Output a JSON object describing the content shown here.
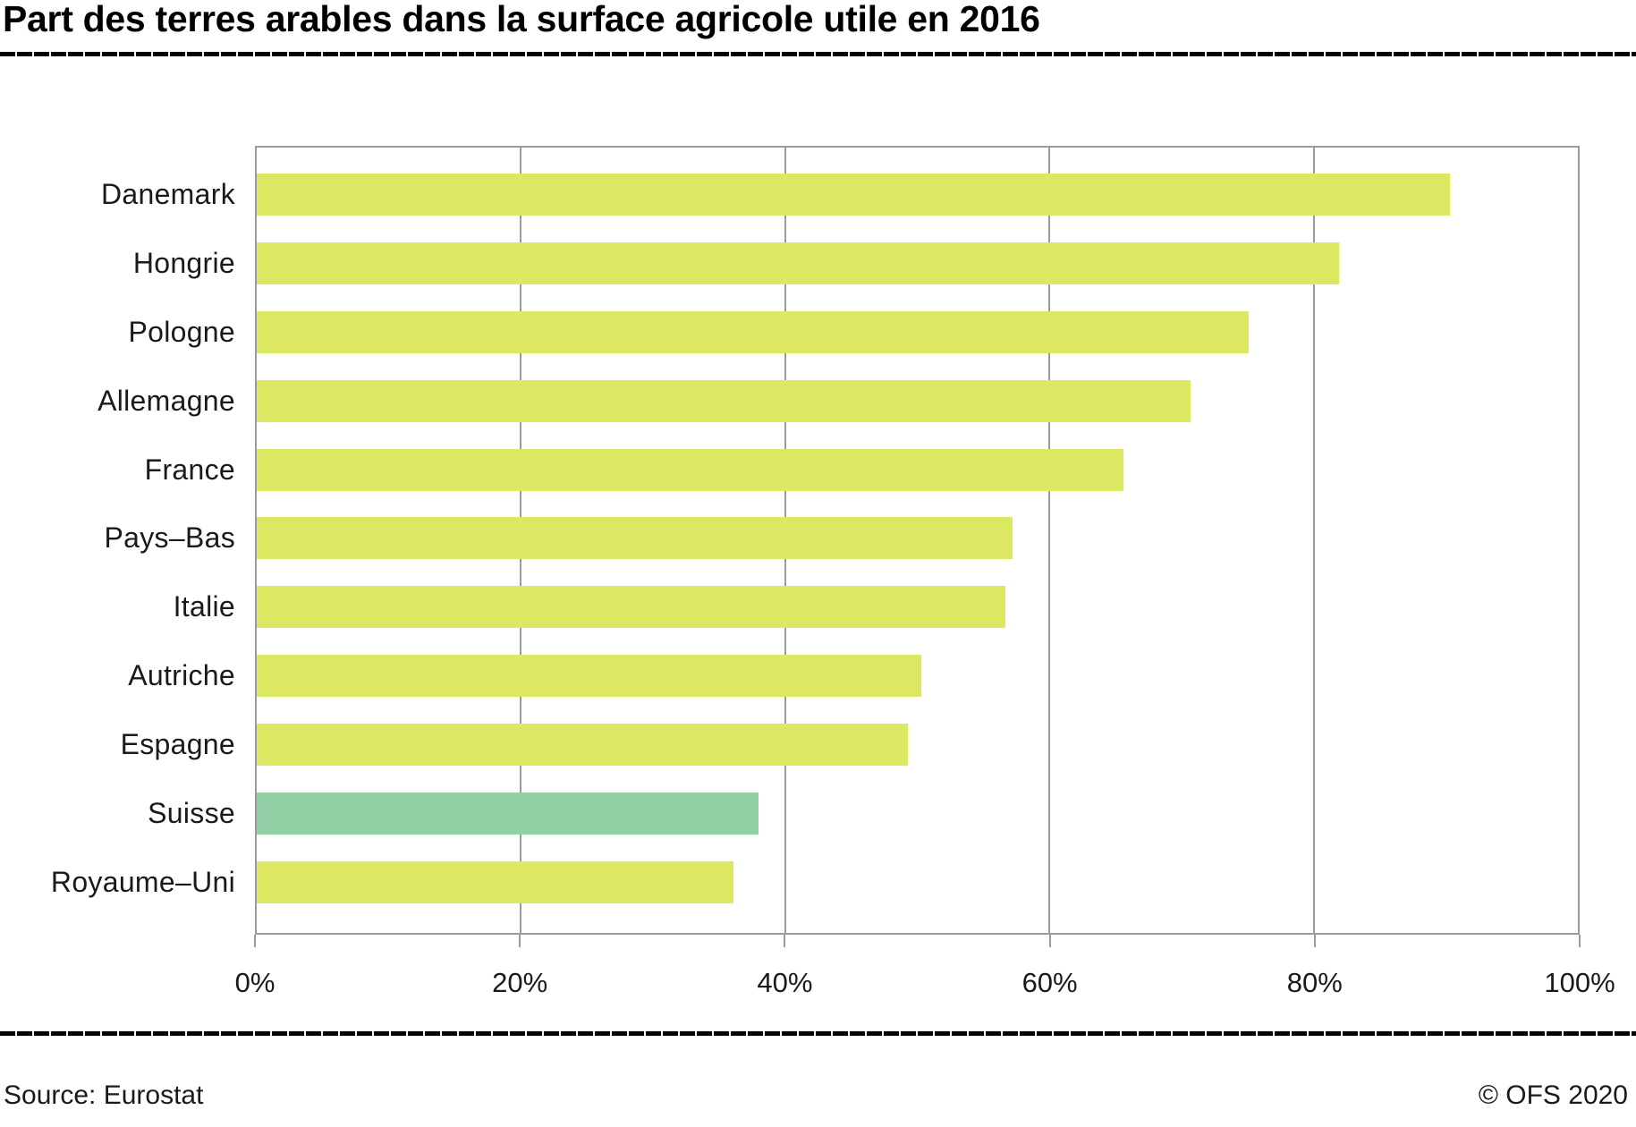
{
  "header": {
    "title": "Part des terres arables dans la surface agricole utile en 2016"
  },
  "footer": {
    "source": "Source: Eurostat",
    "copyright": "© OFS 2020"
  },
  "colors": {
    "bar_default": "#dde862",
    "bar_highlight": "#92d1a5",
    "grid": "#9a9a9a",
    "divider": "#000000",
    "text": "#1a1a1a"
  },
  "chart_data": {
    "type": "bar",
    "orientation": "horizontal",
    "title": "Part des terres arables dans la surface agricole utile en 2016",
    "categories": [
      "Danemark",
      "Hongrie",
      "Pologne",
      "Allemagne",
      "France",
      "Pays–Bas",
      "Italie",
      "Autriche",
      "Espagne",
      "Suisse",
      "Royaume–Uni"
    ],
    "values": [
      90.3,
      81.9,
      75.1,
      70.7,
      65.6,
      57.2,
      56.7,
      50.3,
      49.3,
      38.0,
      36.1
    ],
    "point_colors": [
      "#dde862",
      "#dde862",
      "#dde862",
      "#dde862",
      "#dde862",
      "#dde862",
      "#dde862",
      "#dde862",
      "#dde862",
      "#92d1a5",
      "#dde862"
    ],
    "highlight_category": "Suisse",
    "unit": "%",
    "xlim": [
      0,
      100
    ],
    "x_ticks": [
      {
        "label": "0%",
        "value": 0
      },
      {
        "label": "20%",
        "value": 20
      },
      {
        "label": "40%",
        "value": 40
      },
      {
        "label": "60%",
        "value": 60
      },
      {
        "label": "80%",
        "value": 80
      },
      {
        "label": "100%",
        "value": 100
      }
    ],
    "grid": "vertical",
    "legend": "none"
  }
}
